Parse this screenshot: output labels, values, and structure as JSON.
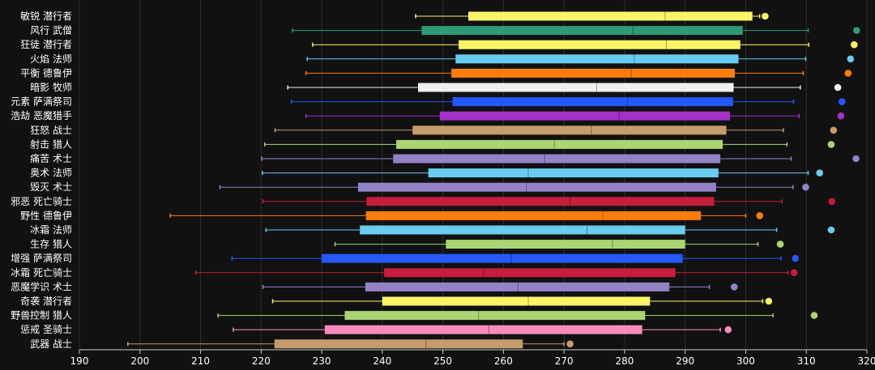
{
  "chart_data": {
    "type": "box",
    "orientation": "horizontal",
    "xlim": [
      190,
      320
    ],
    "x_ticks": [
      190,
      200,
      210,
      220,
      230,
      240,
      250,
      260,
      270,
      280,
      290,
      300,
      310,
      320
    ],
    "grid": "vertical",
    "series": [
      {
        "name": "敏锐 潜行者",
        "color": "#fff468",
        "whisker_low": 245.5,
        "q1": 254.2,
        "median": 286.7,
        "q3": 301.1,
        "whisker_high": 302.3,
        "outliers": [
          303.2
        ]
      },
      {
        "name": "风行 武僧",
        "color": "#2e9b74",
        "whisker_low": 225.2,
        "q1": 246.5,
        "median": 281.4,
        "q3": 299.5,
        "whisker_high": 310.3,
        "outliers": [
          318.3
        ]
      },
      {
        "name": "狂徒 潜行者",
        "color": "#fff468",
        "whisker_low": 228.5,
        "q1": 252.6,
        "median": 286.9,
        "q3": 299.1,
        "whisker_high": 310.4,
        "outliers": [
          317.9
        ]
      },
      {
        "name": "火焰 法师",
        "color": "#69ccf0",
        "whisker_low": 227.6,
        "q1": 252.1,
        "median": 281.6,
        "q3": 298.8,
        "whisker_high": 309.9,
        "outliers": [
          317.3
        ]
      },
      {
        "name": "平衡 德鲁伊",
        "color": "#ff7d0a",
        "whisker_low": 227.4,
        "q1": 251.4,
        "median": 281.1,
        "q3": 298.2,
        "whisker_high": 309.5,
        "outliers": [
          316.9
        ]
      },
      {
        "name": "暗影 牧师",
        "color": "#f0f0f0",
        "whisker_low": 224.4,
        "q1": 245.9,
        "median": 275.4,
        "q3": 298.0,
        "whisker_high": 309.0,
        "outliers": [
          315.2
        ]
      },
      {
        "name": "元素 萨满祭司",
        "color": "#2459ff",
        "whisker_low": 225.0,
        "q1": 251.6,
        "median": 280.5,
        "q3": 297.9,
        "whisker_high": 307.9,
        "outliers": [
          315.9
        ]
      },
      {
        "name": "浩劫 恶魔猎手",
        "color": "#a330c9",
        "whisker_low": 227.4,
        "q1": 249.5,
        "median": 279.1,
        "q3": 297.4,
        "whisker_high": 308.8,
        "outliers": [
          315.7
        ]
      },
      {
        "name": "狂怒 战士",
        "color": "#c69b6d",
        "whisker_low": 222.3,
        "q1": 245.0,
        "median": 274.5,
        "q3": 296.8,
        "whisker_high": 306.2,
        "outliers": [
          314.5
        ]
      },
      {
        "name": "射击 猎人",
        "color": "#abd473",
        "whisker_low": 220.6,
        "q1": 242.3,
        "median": 268.4,
        "q3": 296.2,
        "whisker_high": 306.8,
        "outliers": [
          314.1
        ]
      },
      {
        "name": "痛苦 术士",
        "color": "#9482c9",
        "whisker_low": 220.1,
        "q1": 241.8,
        "median": 266.8,
        "q3": 295.8,
        "whisker_high": 307.5,
        "outliers": [
          318.2
        ]
      },
      {
        "name": "奥术 法师",
        "color": "#69ccf0",
        "whisker_low": 220.2,
        "q1": 247.6,
        "median": 264.1,
        "q3": 295.5,
        "whisker_high": 310.3,
        "outliers": [
          312.2
        ]
      },
      {
        "name": "毁灭 术士",
        "color": "#9482c9",
        "whisker_low": 213.2,
        "q1": 236.0,
        "median": 263.8,
        "q3": 295.1,
        "whisker_high": 307.8,
        "outliers": [
          309.9
        ]
      },
      {
        "name": "邪恶 死亡骑士",
        "color": "#c41e3a",
        "whisker_low": 220.3,
        "q1": 237.4,
        "median": 271.0,
        "q3": 294.8,
        "whisker_high": 306.0,
        "outliers": [
          314.2
        ]
      },
      {
        "name": "野性 德鲁伊",
        "color": "#ff7d0a",
        "whisker_low": 205.0,
        "q1": 237.3,
        "median": 276.4,
        "q3": 292.6,
        "whisker_high": 300.0,
        "outliers": [
          302.3
        ]
      },
      {
        "name": "冰霜 法师",
        "color": "#69ccf0",
        "whisker_low": 220.8,
        "q1": 236.3,
        "median": 273.8,
        "q3": 290.0,
        "whisker_high": 305.1,
        "outliers": [
          314.1
        ]
      },
      {
        "name": "生存 猎人",
        "color": "#abd473",
        "whisker_low": 232.2,
        "q1": 250.5,
        "median": 278.0,
        "q3": 290.0,
        "whisker_high": 302.0,
        "outliers": [
          305.7
        ]
      },
      {
        "name": "增强 萨满祭司",
        "color": "#2459ff",
        "whisker_low": 215.2,
        "q1": 230.0,
        "median": 261.3,
        "q3": 289.6,
        "whisker_high": 305.8,
        "outliers": [
          308.2
        ]
      },
      {
        "name": "冰霜 死亡骑士",
        "color": "#c41e3a",
        "whisker_low": 209.2,
        "q1": 240.3,
        "median": 256.7,
        "q3": 288.4,
        "whisker_high": 307.0,
        "outliers": [
          308.0
        ]
      },
      {
        "name": "恶魔学识 术士",
        "color": "#9482c9",
        "whisker_low": 220.3,
        "q1": 237.2,
        "median": 262.4,
        "q3": 287.4,
        "whisker_high": 294.0,
        "outliers": [
          298.1
        ]
      },
      {
        "name": "奇袭 潜行者",
        "color": "#fff468",
        "whisker_low": 221.9,
        "q1": 240.0,
        "median": 264.1,
        "q3": 284.2,
        "whisker_high": 302.8,
        "outliers": [
          303.8
        ]
      },
      {
        "name": "野兽控制 猎人",
        "color": "#abd473",
        "whisker_low": 212.9,
        "q1": 233.8,
        "median": 255.9,
        "q3": 283.4,
        "whisker_high": 304.5,
        "outliers": [
          311.3
        ]
      },
      {
        "name": "惩戒 圣骑士",
        "color": "#f58cba",
        "whisker_low": 215.4,
        "q1": 230.5,
        "median": 257.6,
        "q3": 282.9,
        "whisker_high": 295.8,
        "outliers": [
          297.1
        ]
      },
      {
        "name": "武器 战士",
        "color": "#c69b6d",
        "whisker_low": 198.0,
        "q1": 222.2,
        "median": 247.2,
        "q3": 263.2,
        "whisker_high": 270.0,
        "outliers": [
          271.0
        ]
      }
    ]
  }
}
